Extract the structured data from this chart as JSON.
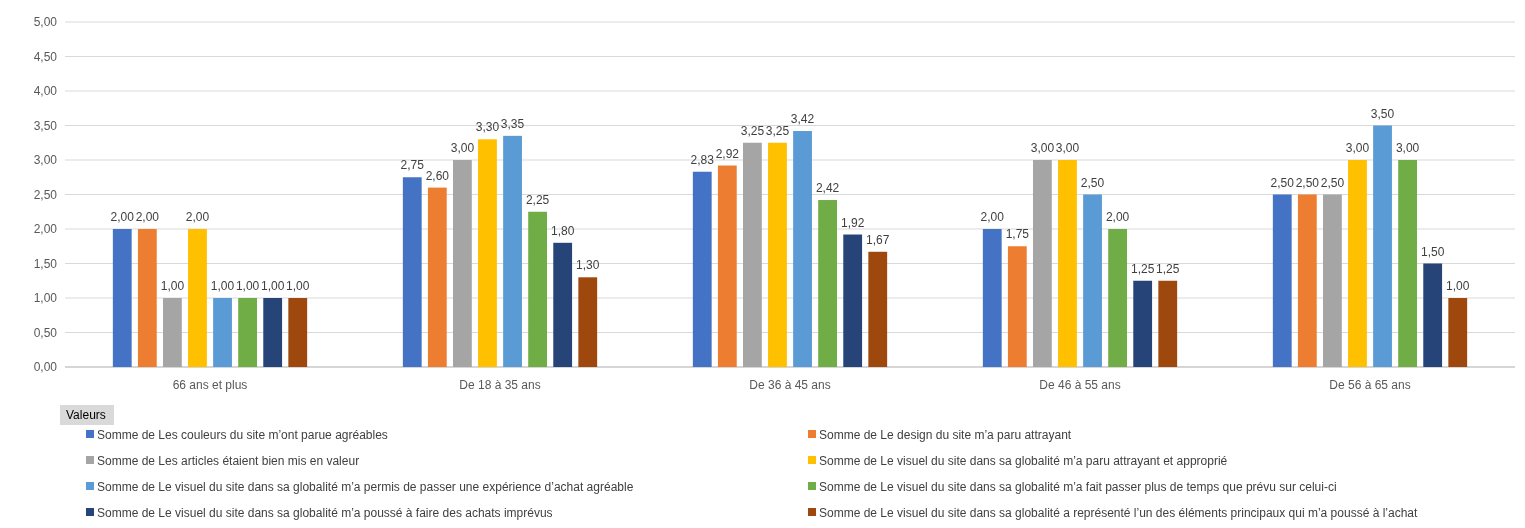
{
  "chart_data": {
    "type": "bar",
    "categories": [
      "66 ans et plus",
      "De 18 à 35 ans",
      "De 36 à 45 ans",
      "De 46 à 55 ans",
      "De 56 à 65 ans"
    ],
    "ylim": [
      0,
      5
    ],
    "yticks": [
      {
        "value": 0,
        "label": "0,00"
      },
      {
        "value": 0.5,
        "label": "0,50"
      },
      {
        "value": 1,
        "label": "1,00"
      },
      {
        "value": 1.5,
        "label": "1,50"
      },
      {
        "value": 2,
        "label": "2,00"
      },
      {
        "value": 2.5,
        "label": "2,50"
      },
      {
        "value": 3,
        "label": "3,00"
      },
      {
        "value": 3.5,
        "label": "3,50"
      },
      {
        "value": 4,
        "label": "4,00"
      },
      {
        "value": 4.5,
        "label": "4,50"
      },
      {
        "value": 5,
        "label": "5,00"
      }
    ],
    "grid": "y",
    "legend": "bottom",
    "legend_title": "Valeurs",
    "series": [
      {
        "name": "Somme de Les couleurs du site m’ont parue agréables",
        "color": "#4472c4",
        "values": [
          2,
          2.75,
          2.83,
          2,
          2.5
        ],
        "value_labels": [
          "2,00",
          "2,75",
          "2,83",
          "2,00",
          "2,50"
        ]
      },
      {
        "name": "Somme de Le design du site m’a paru attrayant",
        "color": "#ed7d31",
        "values": [
          2,
          2.6,
          2.92,
          1.75,
          2.5
        ],
        "value_labels": [
          "2,00",
          "2,60",
          "2,92",
          "1,75",
          "2,50"
        ]
      },
      {
        "name": "Somme de Les articles étaient bien mis en valeur",
        "color": "#a5a5a5",
        "values": [
          1,
          3,
          3.25,
          3,
          2.5
        ],
        "value_labels": [
          "1,00",
          "3,00",
          "3,25",
          "3,00",
          "2,50"
        ]
      },
      {
        "name": "Somme de Le visuel du site dans sa globalité m’a paru attrayant et approprié",
        "color": "#ffc000",
        "values": [
          2,
          3.3,
          3.25,
          3,
          3
        ],
        "value_labels": [
          "2,00",
          "3,30",
          "3,25",
          "3,00",
          "3,00"
        ]
      },
      {
        "name": "Somme de Le visuel du site dans sa globalité m’a permis de passer une expérience d’achat agréable",
        "color": "#5b9bd5",
        "values": [
          1,
          3.35,
          3.42,
          2.5,
          3.5
        ],
        "value_labels": [
          "1,00",
          "3,35",
          "3,42",
          "2,50",
          "3,50"
        ]
      },
      {
        "name": "Somme de Le visuel du site dans sa globalité m’a fait passer plus de temps que prévu sur celui-ci",
        "color": "#70ad47",
        "values": [
          1,
          2.25,
          2.42,
          2,
          3
        ],
        "value_labels": [
          "1,00",
          "2,25",
          "2,42",
          "2,00",
          "3,00"
        ]
      },
      {
        "name": "Somme de Le visuel du site dans sa globalité m’a poussé à faire des achats imprévus",
        "color": "#264478",
        "values": [
          1,
          1.8,
          1.92,
          1.25,
          1.5
        ],
        "value_labels": [
          "1,00",
          "1,80",
          "1,92",
          "1,25",
          "1,50"
        ]
      },
      {
        "name": "Somme de Le visuel du site dans sa globalité a représenté l’un des éléments principaux qui m’a poussé à l’achat",
        "color": "#9e480e",
        "values": [
          1,
          1.3,
          1.67,
          1.25,
          1
        ],
        "value_labels": [
          "1,00",
          "1,30",
          "1,67",
          "1,25",
          "1,00"
        ]
      }
    ]
  }
}
